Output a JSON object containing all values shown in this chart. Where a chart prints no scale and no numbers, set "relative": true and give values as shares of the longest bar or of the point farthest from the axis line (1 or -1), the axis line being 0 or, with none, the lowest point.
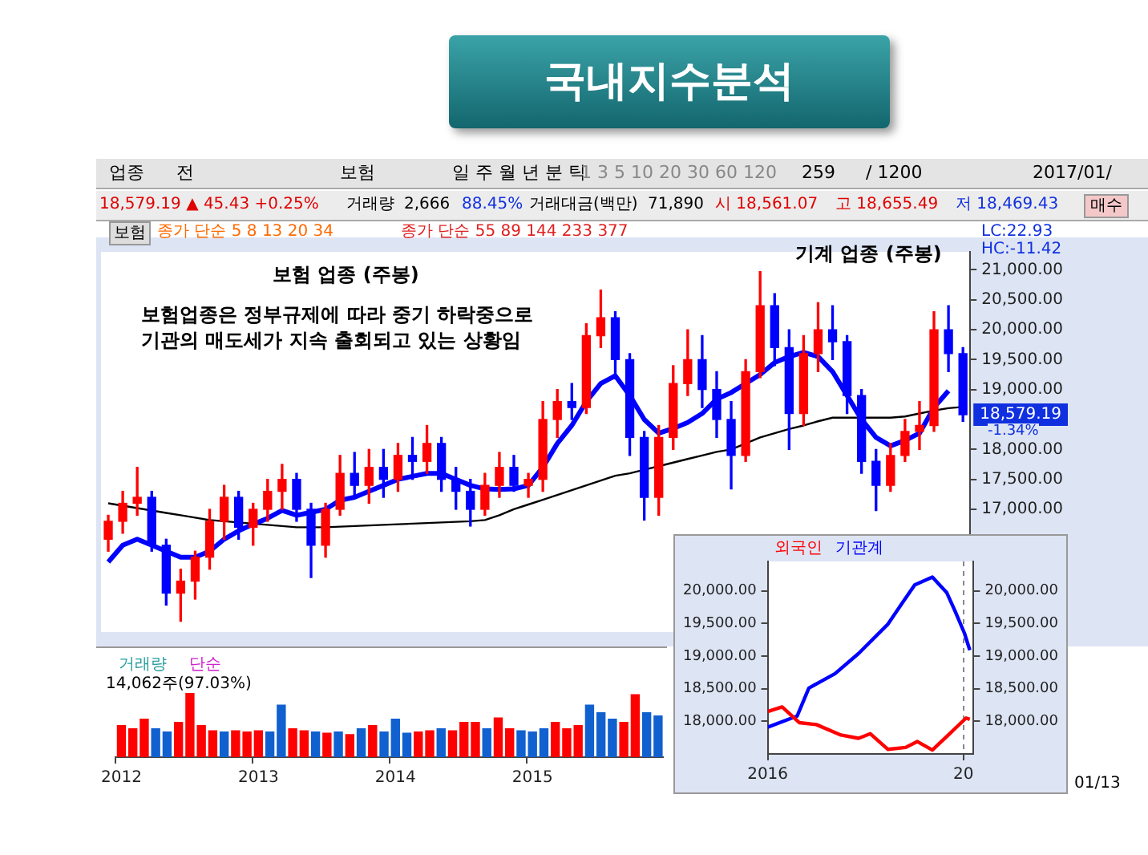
{
  "chart_data": [
    {
      "type": "candlestick",
      "title": "국내지수분석",
      "categories": [
        null,
        null,
        null,
        null,
        null,
        null,
        null,
        null,
        null,
        null,
        null,
        null,
        null,
        null,
        null,
        null,
        null,
        null,
        null,
        null,
        null,
        null,
        null,
        null,
        null,
        null,
        null,
        null,
        null,
        null,
        null,
        null,
        null,
        null,
        null,
        null,
        null,
        null,
        null,
        null,
        null,
        null,
        null,
        null,
        null,
        null,
        null,
        null,
        null,
        null,
        null,
        null,
        null,
        null,
        null,
        null,
        null,
        null,
        null,
        null
      ],
      "ohlc": [
        [
          16500,
          16900,
          16300,
          16800
        ],
        [
          16800,
          17300,
          16600,
          17100
        ],
        [
          17100,
          17700,
          16900,
          17200
        ],
        [
          17200,
          17300,
          16300,
          16400
        ],
        [
          16400,
          16500,
          15400,
          15600
        ],
        [
          15600,
          16000,
          15130,
          15800
        ],
        [
          15800,
          16300,
          15500,
          16200
        ],
        [
          16200,
          17000,
          16000,
          16800
        ],
        [
          16800,
          17400,
          16500,
          17200
        ],
        [
          17200,
          17300,
          16500,
          16700
        ],
        [
          16700,
          17100,
          16400,
          17000
        ],
        [
          17000,
          17500,
          16800,
          17300
        ],
        [
          17300,
          17750,
          17000,
          17500
        ],
        [
          17500,
          17600,
          16800,
          17000
        ],
        [
          17000,
          17100,
          15860,
          16400
        ],
        [
          16400,
          17100,
          16200,
          17000
        ],
        [
          17000,
          17900,
          16900,
          17600
        ],
        [
          17600,
          17950,
          17200,
          17400
        ],
        [
          17400,
          18000,
          17100,
          17700
        ],
        [
          17700,
          18000,
          17200,
          17500
        ],
        [
          17500,
          18100,
          17300,
          17900
        ],
        [
          17900,
          18200,
          17500,
          17800
        ],
        [
          17800,
          18400,
          17600,
          18100
        ],
        [
          18100,
          18200,
          17300,
          17500
        ],
        [
          17500,
          17700,
          17000,
          17300
        ],
        [
          17300,
          17500,
          16720,
          17000
        ],
        [
          17000,
          17600,
          16900,
          17400
        ],
        [
          17400,
          17950,
          17200,
          17700
        ],
        [
          17700,
          17900,
          17300,
          17400
        ],
        [
          17400,
          17600,
          17200,
          17500
        ],
        [
          17500,
          18800,
          17300,
          18500
        ],
        [
          18500,
          19000,
          18200,
          18800
        ],
        [
          18800,
          19100,
          18500,
          18700
        ],
        [
          18700,
          20100,
          18600,
          19900
        ],
        [
          19900,
          20660,
          19700,
          20200
        ],
        [
          20200,
          20300,
          19200,
          19500
        ],
        [
          19500,
          19600,
          17900,
          18200
        ],
        [
          18200,
          18300,
          16820,
          17200
        ],
        [
          17200,
          18400,
          16900,
          18200
        ],
        [
          18200,
          19400,
          18000,
          19100
        ],
        [
          19100,
          20000,
          18900,
          19500
        ],
        [
          19500,
          19900,
          18700,
          19000
        ],
        [
          19000,
          19300,
          18200,
          18500
        ],
        [
          18500,
          18800,
          17340,
          17900
        ],
        [
          17900,
          19500,
          17800,
          19300
        ],
        [
          19300,
          20970,
          19200,
          20400
        ],
        [
          20400,
          20600,
          19400,
          19700
        ],
        [
          19700,
          20000,
          18000,
          18600
        ],
        [
          18600,
          19900,
          18400,
          19600
        ],
        [
          19600,
          20450,
          19300,
          20000
        ],
        [
          20000,
          20400,
          19500,
          19800
        ],
        [
          19800,
          19900,
          18600,
          18900
        ],
        [
          18900,
          19000,
          17600,
          17800
        ],
        [
          17800,
          18000,
          16980,
          17400
        ],
        [
          17400,
          18100,
          17300,
          17900
        ],
        [
          17900,
          18500,
          17800,
          18300
        ],
        [
          18300,
          18800,
          18000,
          18400
        ],
        [
          18400,
          20300,
          18300,
          20000
        ],
        [
          20000,
          20400,
          19300,
          19600
        ],
        [
          19600,
          19700,
          18469.43,
          18579.19
        ]
      ],
      "colors": [
        "#ff0000",
        "#ff0000",
        "#ff0000",
        "#0000ff",
        "#0000ff",
        "#ff0000",
        "#ff0000",
        "#ff0000",
        "#ff0000",
        "#0000ff",
        "#ff0000",
        "#ff0000",
        "#ff0000",
        "#0000ff",
        "#0000ff",
        "#ff0000",
        "#ff0000",
        "#0000ff",
        "#ff0000",
        "#0000ff",
        "#ff0000",
        "#0000ff",
        "#ff0000",
        "#0000ff",
        "#0000ff",
        "#0000ff",
        "#ff0000",
        "#ff0000",
        "#0000ff",
        "#ff0000",
        "#ff0000",
        "#ff0000",
        "#0000ff",
        "#ff0000",
        "#ff0000",
        "#0000ff",
        "#0000ff",
        "#0000ff",
        "#ff0000",
        "#ff0000",
        "#ff0000",
        "#0000ff",
        "#0000ff",
        "#0000ff",
        "#ff0000",
        "#ff0000",
        "#0000ff",
        "#0000ff",
        "#ff0000",
        "#ff0000",
        "#0000ff",
        "#0000ff",
        "#0000ff",
        "#0000ff",
        "#ff0000",
        "#ff0000",
        "#ff0000",
        "#ff0000",
        "#0000ff",
        "#0000ff"
      ],
      "series": [
        {
          "type": "line",
          "color": "#0000ff",
          "values": [
            16120,
            16400,
            16500,
            16400,
            16300,
            16200,
            16200,
            16300,
            16500,
            16640,
            16750,
            16850,
            16980,
            16900,
            16950,
            17000,
            17150,
            17200,
            17300,
            17400,
            17500,
            17550,
            17600,
            17600,
            17500,
            17400,
            17340,
            17330,
            17340,
            17400,
            17700,
            18100,
            18400,
            18800,
            19100,
            19230,
            18900,
            18500,
            18270,
            18350,
            18450,
            18600,
            18840,
            18950,
            19100,
            19250,
            19450,
            19550,
            19620,
            19550,
            19300,
            18900,
            18500,
            18200,
            18060,
            18150,
            18270,
            18700,
            18980,
            null
          ]
        },
        {
          "type": "line",
          "color": "#000000",
          "values": [
            17100,
            17060,
            17020,
            16980,
            16940,
            16900,
            16860,
            16820,
            16800,
            16780,
            16760,
            16740,
            16720,
            16700,
            16700,
            16700,
            16710,
            16720,
            16730,
            16740,
            16750,
            16760,
            16770,
            16780,
            16790,
            16800,
            16820,
            16900,
            17000,
            17080,
            17160,
            17240,
            17320,
            17400,
            17480,
            17560,
            17600,
            17660,
            17720,
            17780,
            17840,
            17900,
            17960,
            18000,
            18100,
            18200,
            18270,
            18340,
            18400,
            18470,
            18530,
            18530,
            18530,
            18530,
            18530,
            18550,
            18600,
            18650,
            18690,
            18710
          ]
        }
      ],
      "marker": "none",
      "tick_labels": "y",
      "ylim": [
        14950,
        21300
      ],
      "yticks": [
        {
          "value": 17000,
          "label": "17,000.00"
        },
        {
          "value": 17500,
          "label": "17,500.00"
        },
        {
          "value": 18000,
          "label": "18,000.00"
        },
        {
          "value": 19000,
          "label": "19,000.00"
        },
        {
          "value": 19500,
          "label": "19,500.00"
        },
        {
          "value": 20000,
          "label": "20,000.00"
        },
        {
          "value": 20500,
          "label": "20,500.00"
        },
        {
          "value": 21000,
          "label": "21,000.00"
        }
      ],
      "annotations": [
        "보험 업종 (주봉)",
        "보험업종은 정부규제에 따라 중기 하락중으로",
        "기관의 매도세가 지속 출회되고 있는 상황임",
        "기계 업종 (주봉)",
        "18,579.19",
        "-1.34%",
        "LC:22.93",
        "HC:-11.42",
        "보험",
        "종가 단순 5 8 13 20 34",
        "종가 단순 55 89 144 233 377",
        "18,579.19 ▲ 45.43 +0.25%",
        "거래량",
        "2,666",
        "88.45%",
        "거래대금(백만)",
        "71,890",
        "시 18,561.07",
        "고 18,655.49",
        "저 18,469.43",
        "매수",
        "업종",
        "전",
        "보험",
        "일 주 월 년 분 틱",
        "1 3 5 10 20 30 60 120",
        "259",
        "/ 1200",
        "2017/01/",
        "01/13"
      ]
    },
    {
      "type": "bar",
      "relative": true,
      "tick_labels": "x",
      "categories": [
        "2012",
        null,
        null,
        null,
        null,
        null,
        null,
        null,
        null,
        null,
        null,
        null,
        "2013",
        null,
        null,
        null,
        null,
        null,
        null,
        null,
        null,
        null,
        null,
        null,
        "2014",
        null,
        null,
        null,
        null,
        null,
        null,
        null,
        null,
        null,
        null,
        null,
        "2015",
        null,
        null,
        null,
        null,
        null,
        null,
        null,
        null,
        null,
        null,
        null
      ],
      "values": [
        0.5,
        0.45,
        0.6,
        0.45,
        0.4,
        0.55,
        1,
        0.5,
        0.42,
        0.4,
        0.42,
        0.4,
        0.42,
        0.4,
        0.82,
        0.45,
        0.42,
        0.4,
        0.38,
        0.4,
        0.36,
        0.45,
        0.5,
        0.4,
        0.6,
        0.38,
        0.4,
        0.42,
        0.45,
        0.42,
        0.55,
        0.55,
        0.45,
        0.62,
        0.45,
        0.42,
        0.4,
        0.45,
        0.55,
        0.45,
        0.5,
        0.82,
        0.7,
        0.6,
        0.55,
        0.98,
        0.7,
        0.65
      ],
      "colors": [
        "#ff0000",
        "#ff0000",
        "#ff0000",
        "#1060d0",
        "#1060d0",
        "#ff0000",
        "#ff0000",
        "#ff0000",
        "#ff0000",
        "#1060d0",
        "#ff0000",
        "#ff0000",
        "#ff0000",
        "#1060d0",
        "#1060d0",
        "#ff0000",
        "#ff0000",
        "#1060d0",
        "#ff0000",
        "#1060d0",
        "#ff0000",
        "#1060d0",
        "#ff0000",
        "#1060d0",
        "#1060d0",
        "#1060d0",
        "#ff0000",
        "#ff0000",
        "#1060d0",
        "#ff0000",
        "#ff0000",
        "#ff0000",
        "#1060d0",
        "#ff0000",
        "#ff0000",
        "#1060d0",
        "#1060d0",
        "#1060d0",
        "#ff0000",
        "#ff0000",
        "#ff0000",
        "#1060d0",
        "#1060d0",
        "#1060d0",
        "#ff0000",
        "#ff0000",
        "#1060d0",
        "#1060d0"
      ],
      "annotations": [
        "거래량",
        "단순",
        "14,062주(97.03%)"
      ]
    },
    {
      "type": "line",
      "legend": "top left",
      "grid": "x",
      "marker": "none",
      "series": [
        {
          "name": "외국인",
          "color": "#ff0000",
          "x": [
            "2016-01-01",
            "2016-01-28",
            "2016-02-29",
            "2016-04-01",
            "2016-05-17",
            "2016-06-19",
            "2016-07-11",
            "2016-08-13",
            "2016-09-15",
            "2016-10-07",
            "2016-11-04",
            "2016-12-01",
            "2017-01-06",
            "2017-01-13"
          ],
          "values": [
            18150,
            18220,
            17980,
            17950,
            17790,
            17740,
            17810,
            17570,
            17600,
            17690,
            17560,
            17770,
            18050,
            18030
          ]
        },
        {
          "name": "기관계",
          "color": "#0000ff",
          "x": [
            "2016-01-01",
            "2016-02-25",
            "2016-03-18",
            "2016-05-06",
            "2016-06-19",
            "2016-08-13",
            "2016-09-10",
            "2016-10-02",
            "2016-11-04",
            "2016-12-01",
            "2016-12-18",
            "2017-01-03",
            "2017-01-13"
          ],
          "values": [
            17910,
            18080,
            18510,
            18730,
            19040,
            19490,
            19830,
            20090,
            20210,
            19970,
            19660,
            19350,
            19090
          ]
        }
      ],
      "xlim": [
        "2016-01-01",
        "2017-01-20"
      ],
      "xticks": [
        {
          "value": "2016-01-01",
          "label": "2016"
        },
        {
          "value": "2017-01-01",
          "label": "20"
        }
      ],
      "ylim": [
        17500,
        20450
      ],
      "yticks": [
        {
          "value": 18000,
          "label": "18,000.00"
        },
        {
          "value": 18500,
          "label": "18,500.00"
        },
        {
          "value": 19000,
          "label": "19,000.00"
        },
        {
          "value": 19500,
          "label": "19,500.00"
        },
        {
          "value": 20000,
          "label": "20,000.00"
        }
      ],
      "y2lim": [
        17500,
        20450
      ],
      "y2ticks": [
        {
          "value": 18000,
          "label": "18,000.00"
        },
        {
          "value": 18500,
          "label": "18,500.00"
        },
        {
          "value": 19000,
          "label": "19,000.00"
        },
        {
          "value": 19500,
          "label": "19,500.00"
        },
        {
          "value": 20000,
          "label": "20,000.00"
        }
      ]
    }
  ]
}
